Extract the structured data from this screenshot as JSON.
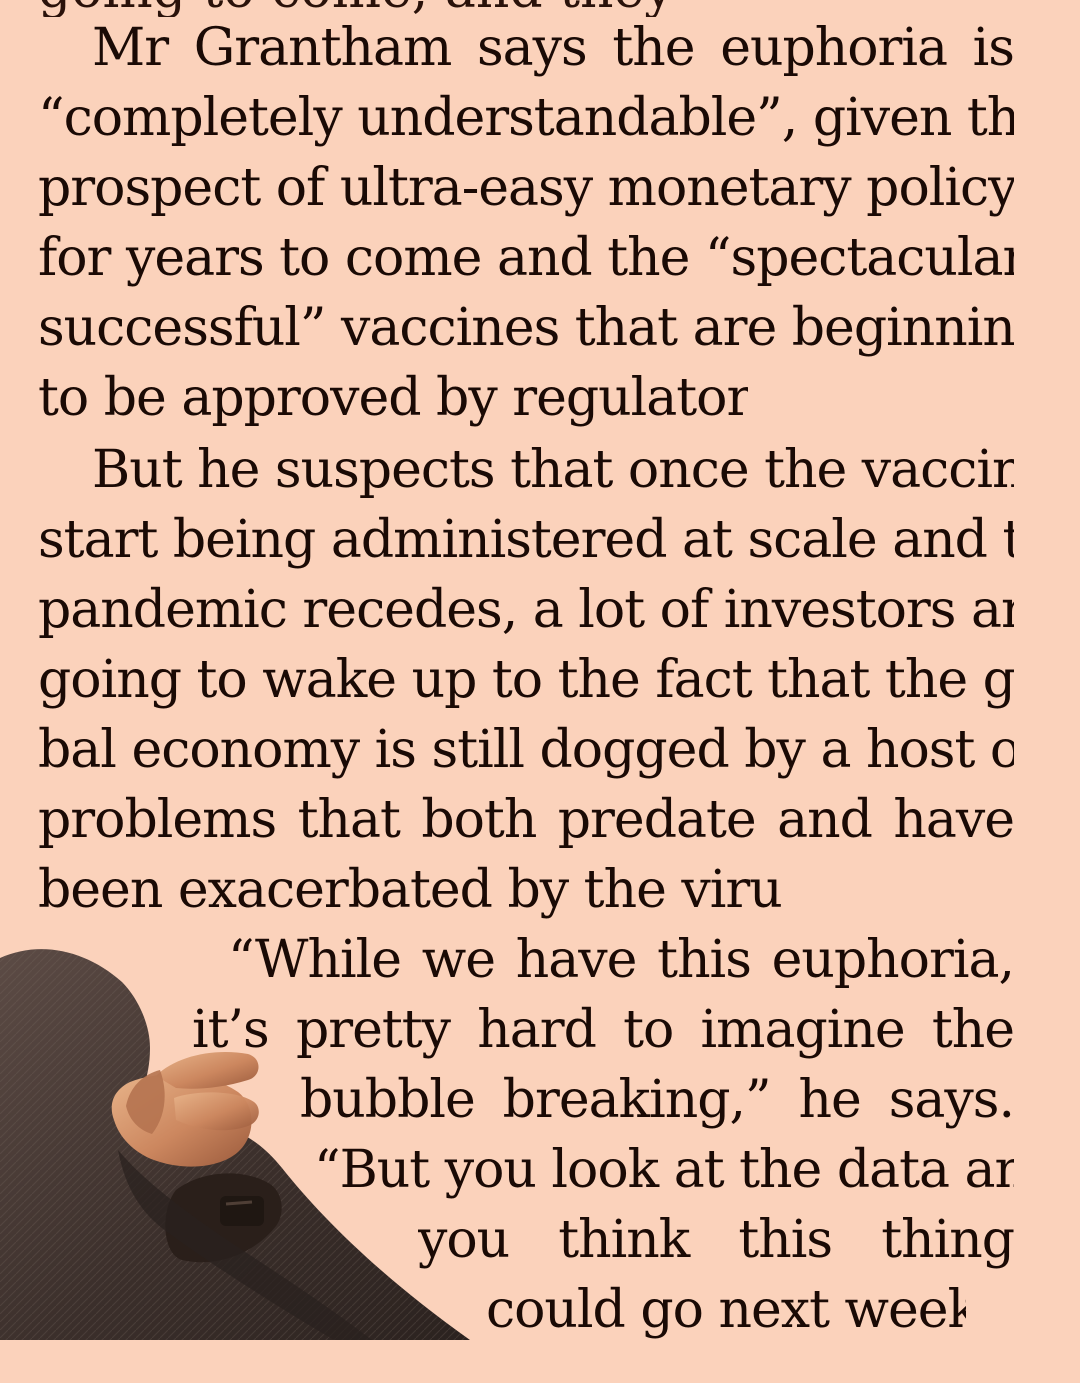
{
  "article": {
    "cropped_top_line": "going to come, and they",
    "paragraph1": [
      "Mr Grantham says the euphoria is",
      "“completely understandable”, given the",
      "prospect of ultra-easy monetary policy",
      "for years to come and the “spectacularly",
      "successful” vaccines that are beginning",
      "to be approved by regulators."
    ],
    "paragraph2": [
      "But he suspects that once the vaccines",
      "start being administered at scale and the",
      "pandemic recedes, a lot of investors are",
      "going to wake up to the fact that the glo-",
      "bal economy is still dogged by a host of",
      "problems that both predate and have",
      "been exacerbated by the virus."
    ],
    "quote": [
      "“While we have this euphoria,",
      "it’s pretty hard to imagine the",
      "bubble breaking,” he says.",
      "“But you look at the data and",
      "you think this thing",
      "could go next week.”"
    ]
  },
  "colors": {
    "paper": "#fbd2bb",
    "ink": "#1a0a05",
    "coat": "#3f322c",
    "skin": "#d79b72",
    "watch": "#1f1712"
  }
}
